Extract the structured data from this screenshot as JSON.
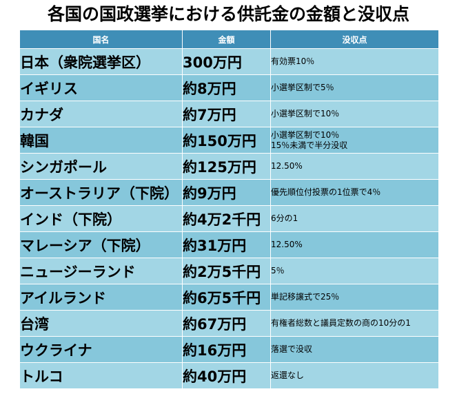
{
  "title": "各国の国政選挙における供託金の金額と没収点",
  "headers": {
    "country": "国名",
    "amount": "金額",
    "confiscation": "没収点"
  },
  "rows": [
    {
      "country": "日本（衆院選挙区）",
      "amount": "300万円",
      "rule": "有効票10％"
    },
    {
      "country": "イギリス",
      "amount": "約8万円",
      "rule": "小選挙区制で5％"
    },
    {
      "country": "カナダ",
      "amount": "約7万円",
      "rule": "小選挙区制で10％"
    },
    {
      "country": "韓国",
      "amount": "約150万円",
      "rule": "小選挙区制で10％\n15％未満で半分没収"
    },
    {
      "country": "シンガポール",
      "amount": "約125万円",
      "rule": "12.50%"
    },
    {
      "country": "オーストラリア（下院）",
      "amount": "約9万円",
      "rule": "優先順位付投票の1位票で4％"
    },
    {
      "country": "インド（下院）",
      "amount": "約4万2千円",
      "rule": "6分の1"
    },
    {
      "country": "マレーシア（下院）",
      "amount": "約31万円",
      "rule": "12.50%"
    },
    {
      "country": "ニュージーランド",
      "amount": "約2万5千円",
      "rule": "5％"
    },
    {
      "country": "アイルランド",
      "amount": "約6万5千円",
      "rule": "単記移譲式で25％"
    },
    {
      "country": "台湾",
      "amount": "約67万円",
      "rule": "有権者総数と議員定数の商の10分の1"
    },
    {
      "country": "ウクライナ",
      "amount": "約16万円",
      "rule": "落選で没収"
    },
    {
      "country": "トルコ",
      "amount": "約40万円",
      "rule": "返還なし"
    }
  ],
  "colors": {
    "header_bg": "#3f8eb7",
    "row_light": "#a2d6e5",
    "row_dark": "#86c7db"
  }
}
